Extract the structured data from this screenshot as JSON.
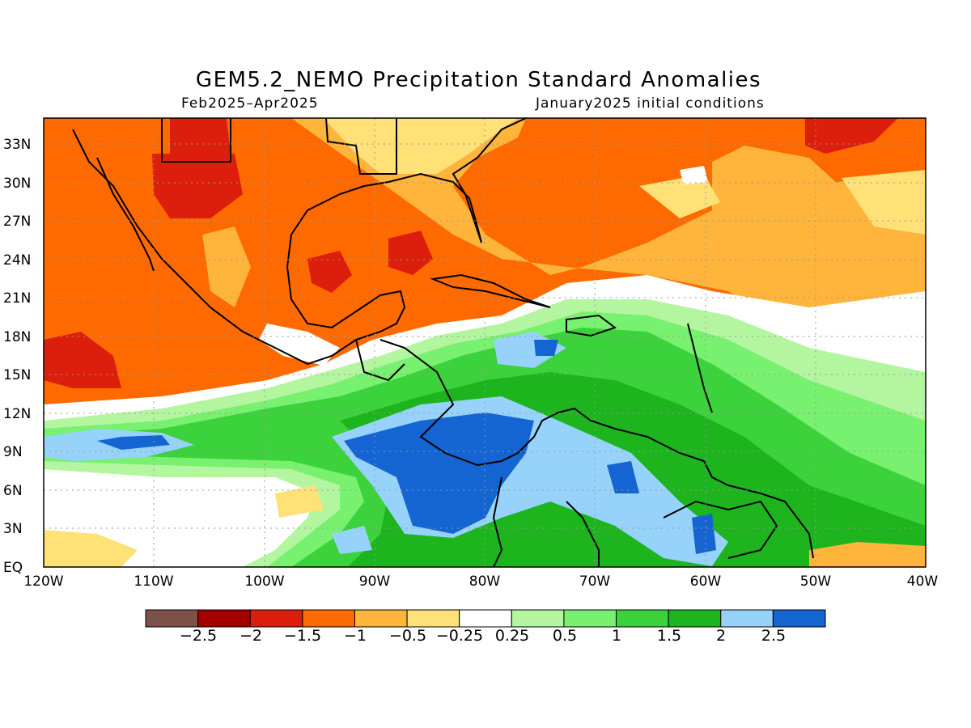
{
  "header": {
    "title": "GEM5.2_NEMO Precipitation Standard Anomalies",
    "period": "Feb2025–Apr2025",
    "init": "January2025 initial conditions"
  },
  "axes": {
    "lat_labels": [
      "33N",
      "30N",
      "27N",
      "24N",
      "21N",
      "18N",
      "15N",
      "12N",
      "9N",
      "6N",
      "3N",
      "EQ"
    ],
    "lon_labels": [
      "120W",
      "110W",
      "100W",
      "90W",
      "80W",
      "70W",
      "60W",
      "50W",
      "40W"
    ],
    "lat_range": [
      0,
      35
    ],
    "lon_range": [
      -120,
      -40
    ],
    "grid": true
  },
  "colorbar": {
    "colors": [
      "#7b5148",
      "#a50000",
      "#dc1e0c",
      "#ff6a00",
      "#ffb43c",
      "#ffe178",
      "#ffffff",
      "#b4f5a0",
      "#78f070",
      "#3cd23c",
      "#1eb41e",
      "#96d2fa",
      "#1464d2"
    ],
    "labels": [
      "−2.5",
      "−2",
      "−1.5",
      "−1",
      "−0.5",
      "−0.25",
      "0.25",
      "0.5",
      "1",
      "1.5",
      "2",
      "2.5"
    ]
  }
}
